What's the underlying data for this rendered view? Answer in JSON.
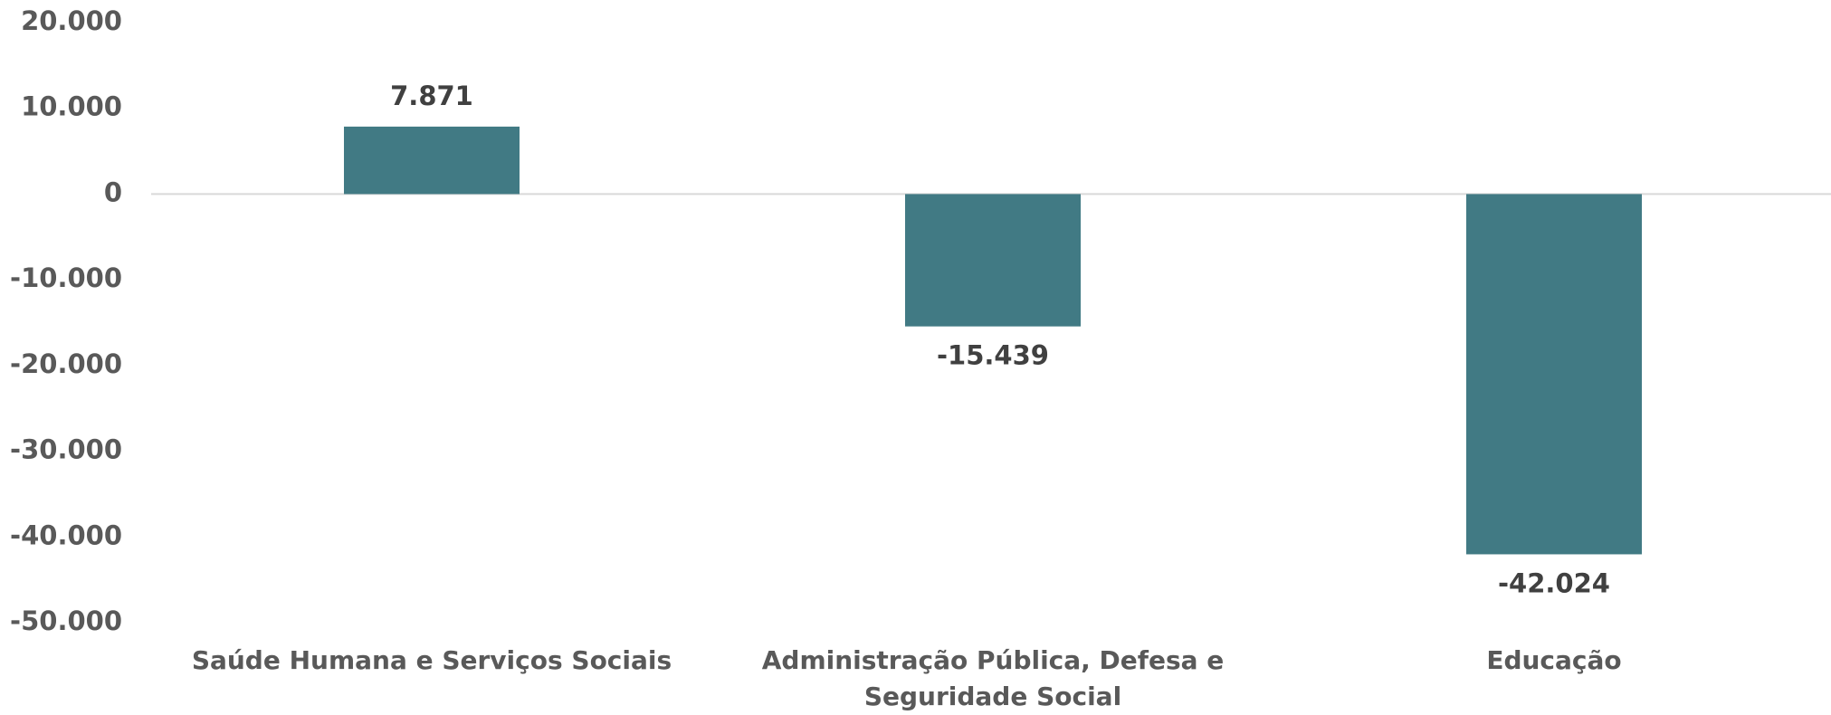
{
  "chart_data": {
    "type": "bar",
    "categories": [
      "Saúde Humana e Serviços Sociais",
      "Administração Pública, Defesa e Seguridade Social",
      "Educação"
    ],
    "values": [
      7871,
      -15439,
      -42024
    ],
    "value_labels": [
      "7.871",
      "-15.439",
      "-42.024"
    ],
    "color": "#417a84",
    "ylim": [
      -50000,
      20000
    ],
    "yticks": [
      {
        "value": 20000,
        "label": "20.000"
      },
      {
        "value": 10000,
        "label": "10.000"
      },
      0,
      {
        "value": -10000,
        "label": "-10.000"
      },
      {
        "value": -20000,
        "label": "-20.000"
      },
      {
        "value": -30000,
        "label": "-30.000"
      },
      {
        "value": -40000,
        "label": "-40.000"
      },
      {
        "value": -50000,
        "label": "-50.000"
      }
    ],
    "grid": false
  }
}
